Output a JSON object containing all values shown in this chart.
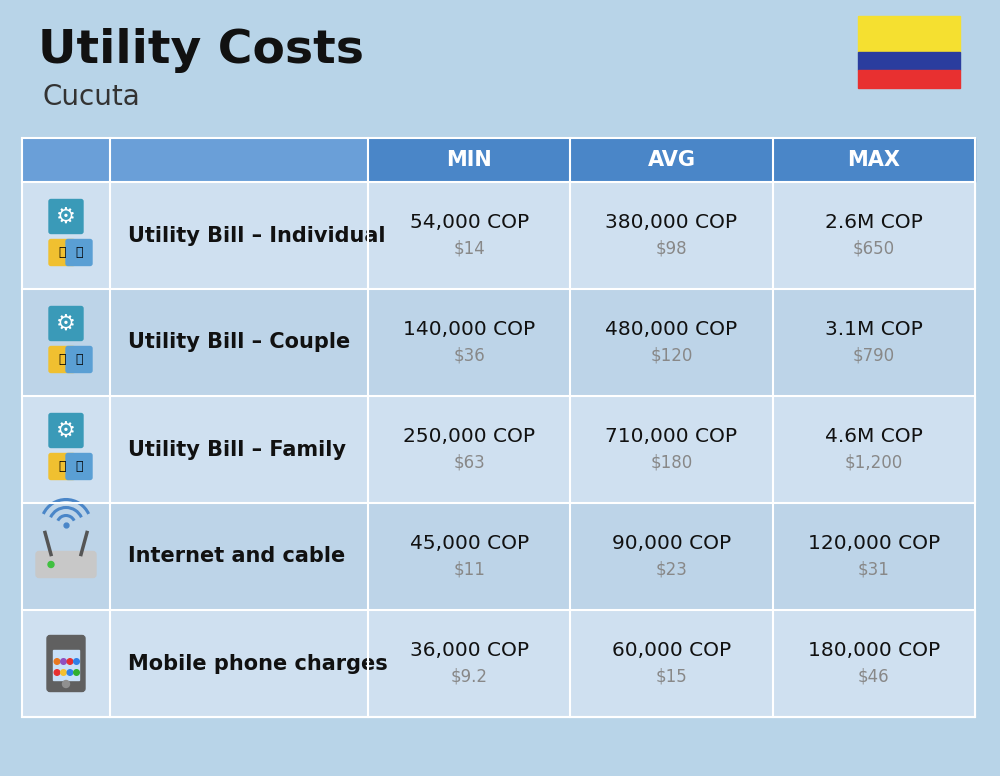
{
  "title": "Utility Costs",
  "subtitle": "Cucuta",
  "background_color": "#b8d4e8",
  "header_bg_color": "#4a86c8",
  "header_text_color": "#ffffff",
  "row_bg_color_1": "#cfe0f0",
  "row_bg_color_2": "#bdd4e8",
  "col_header_labels": [
    "MIN",
    "AVG",
    "MAX"
  ],
  "rows": [
    {
      "label": "Utility Bill – Individual",
      "min_cop": "54,000 COP",
      "min_usd": "$14",
      "avg_cop": "380,000 COP",
      "avg_usd": "$98",
      "max_cop": "2.6M COP",
      "max_usd": "$650",
      "icon": "utility"
    },
    {
      "label": "Utility Bill – Couple",
      "min_cop": "140,000 COP",
      "min_usd": "$36",
      "avg_cop": "480,000 COP",
      "avg_usd": "$120",
      "max_cop": "3.1M COP",
      "max_usd": "$790",
      "icon": "utility"
    },
    {
      "label": "Utility Bill – Family",
      "min_cop": "250,000 COP",
      "min_usd": "$63",
      "avg_cop": "710,000 COP",
      "avg_usd": "$180",
      "max_cop": "4.6M COP",
      "max_usd": "$1,200",
      "icon": "utility"
    },
    {
      "label": "Internet and cable",
      "min_cop": "45,000 COP",
      "min_usd": "$11",
      "avg_cop": "90,000 COP",
      "avg_usd": "$23",
      "max_cop": "120,000 COP",
      "max_usd": "$31",
      "icon": "internet"
    },
    {
      "label": "Mobile phone charges",
      "min_cop": "36,000 COP",
      "min_usd": "$9.2",
      "avg_cop": "60,000 COP",
      "avg_usd": "$15",
      "max_cop": "180,000 COP",
      "max_usd": "$46",
      "icon": "mobile"
    }
  ],
  "flag_yellow": "#f5e030",
  "flag_blue": "#2a3d9e",
  "flag_red": "#e83030",
  "cop_fontsize": 14.5,
  "usd_fontsize": 12,
  "label_fontsize": 15,
  "header_fontsize": 15,
  "title_fontsize": 34,
  "subtitle_fontsize": 20
}
